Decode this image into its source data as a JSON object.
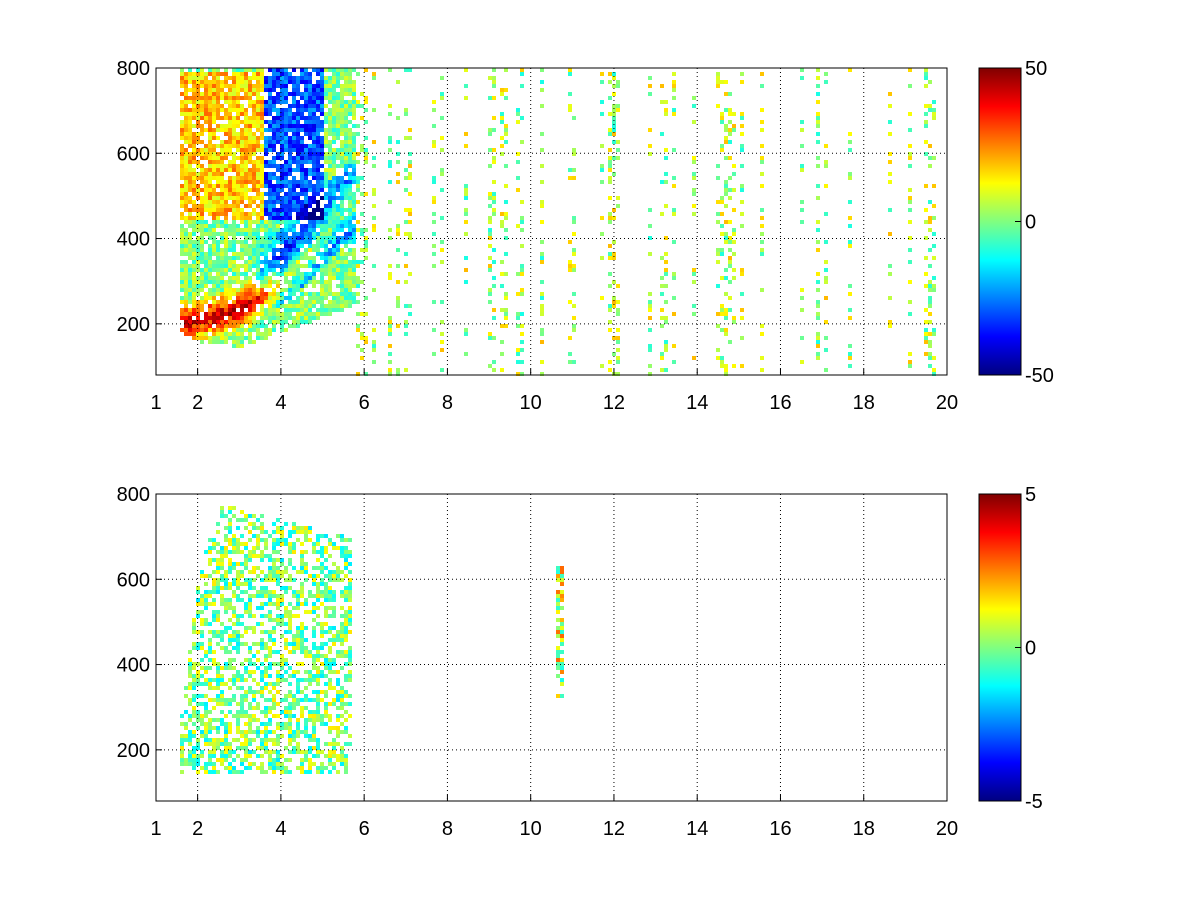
{
  "chart_data": [
    {
      "type": "heatmap",
      "title": "",
      "xlabel": "",
      "ylabel": "",
      "xlim": [
        1,
        20
      ],
      "ylim": [
        80,
        800
      ],
      "xticks": [
        1,
        2,
        4,
        6,
        8,
        10,
        12,
        14,
        16,
        18,
        20
      ],
      "yticks": [
        200,
        400,
        600,
        800
      ],
      "grid": true,
      "colormap": "jet",
      "clim": [
        -50,
        50
      ],
      "colorbar_ticks": [
        "50",
        "0",
        "-50"
      ],
      "description_regions": [
        {
          "x": [
            1.5,
            5.8
          ],
          "y": [
            150,
            800
          ],
          "value_range": [
            -50,
            50
          ],
          "pattern": "dense, positive band above negative band"
        },
        {
          "x": [
            6,
            20
          ],
          "y": [
            80,
            800
          ],
          "value_range": [
            -10,
            15
          ],
          "pattern": "sparse speckle"
        }
      ],
      "band_positive": [
        [
          1.5,
          205
        ],
        [
          2,
          215
        ],
        [
          2.5,
          225
        ],
        [
          3,
          240
        ],
        [
          3.5,
          270
        ],
        [
          4,
          310
        ],
        [
          4.5,
          360
        ],
        [
          5,
          420
        ],
        [
          5.5,
          480
        ]
      ],
      "band_negative": [
        [
          2.5,
          215
        ],
        [
          3,
          230
        ],
        [
          3.5,
          255
        ],
        [
          4,
          280
        ],
        [
          4.5,
          320
        ],
        [
          5,
          370
        ],
        [
          5.5,
          420
        ]
      ]
    },
    {
      "type": "heatmap",
      "title": "",
      "xlabel": "",
      "ylabel": "",
      "xlim": [
        1,
        20
      ],
      "ylim": [
        80,
        800
      ],
      "xticks": [
        1,
        2,
        4,
        6,
        8,
        10,
        12,
        14,
        16,
        18,
        20
      ],
      "yticks": [
        200,
        400,
        600,
        800
      ],
      "grid": true,
      "colormap": "jet",
      "clim": [
        -5,
        5
      ],
      "colorbar_ticks": [
        "5",
        "0",
        "-5"
      ],
      "description_regions": [
        {
          "x": [
            1.5,
            5.8
          ],
          "y": [
            150,
            800
          ],
          "value_range": [
            -2,
            2
          ],
          "pattern": "near-zero dense region"
        },
        {
          "x": [
            10.7,
            10.8
          ],
          "y": [
            330,
            640
          ],
          "value_range": [
            -1,
            2
          ],
          "pattern": "thin vertical strip"
        }
      ]
    }
  ]
}
